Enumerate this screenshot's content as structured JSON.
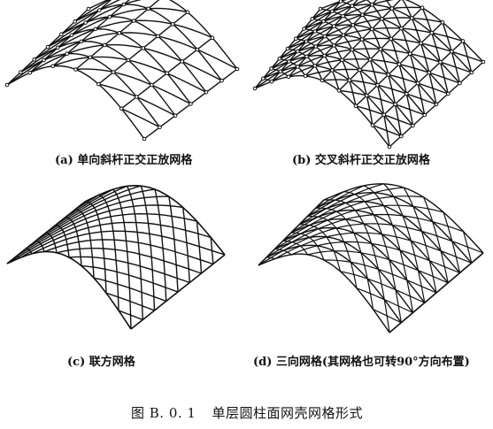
{
  "panels": [
    {
      "id": "a",
      "caption": "(a) 单向斜杆正交正放网格",
      "pattern": "single-diagonal"
    },
    {
      "id": "b",
      "caption": "(b) 交叉斜杆正交正放网格",
      "pattern": "cross-diagonal"
    },
    {
      "id": "c",
      "caption": "(c) 联方网格",
      "pattern": "lamella"
    },
    {
      "id": "d",
      "caption": "(d) 三向网格(其网格也可转90°方向布置)",
      "pattern": "three-way"
    }
  ],
  "figure": {
    "number": "图 B. 0. 1",
    "title": "单层圆柱面网壳网格形式"
  },
  "colors": {
    "line": "#111111",
    "background": "#ffffff"
  }
}
